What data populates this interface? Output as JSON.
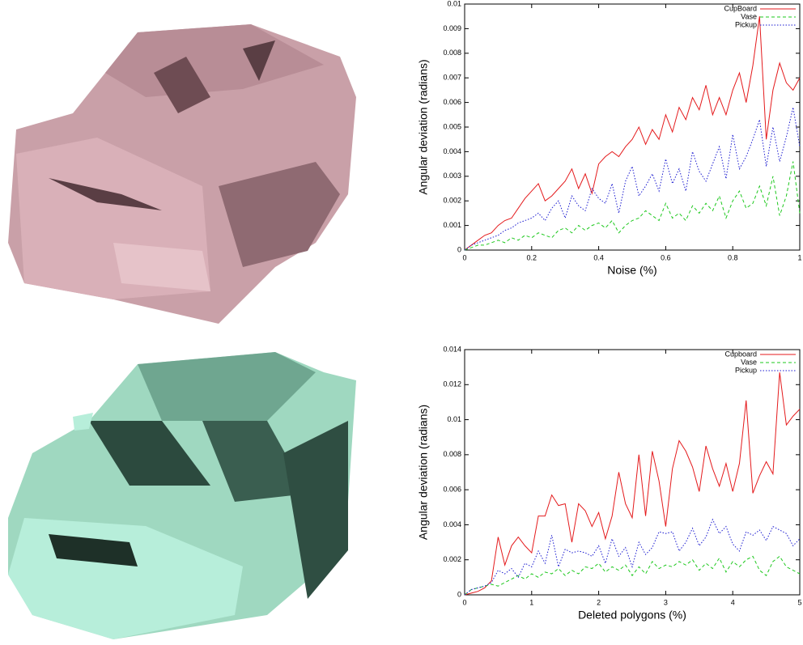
{
  "chart_data": [
    {
      "type": "line",
      "xlabel": "Noise (%)",
      "ylabel": "Angular deviation (radians)",
      "xlim": [
        0,
        1
      ],
      "xticks": [
        0,
        0.2,
        0.4,
        0.6,
        0.8,
        1
      ],
      "ylim": [
        0,
        0.01
      ],
      "yticks": [
        0,
        0.001,
        0.002,
        0.003,
        0.004,
        0.005,
        0.006,
        0.007,
        0.008,
        0.009,
        0.01
      ],
      "legend": "upper right",
      "x": [
        0,
        0.02,
        0.04,
        0.06,
        0.08,
        0.1,
        0.12,
        0.14,
        0.16,
        0.18,
        0.2,
        0.22,
        0.24,
        0.26,
        0.28,
        0.3,
        0.32,
        0.34,
        0.36,
        0.38,
        0.4,
        0.42,
        0.44,
        0.46,
        0.48,
        0.5,
        0.52,
        0.54,
        0.56,
        0.58,
        0.6,
        0.62,
        0.64,
        0.66,
        0.68,
        0.7,
        0.72,
        0.74,
        0.76,
        0.78,
        0.8,
        0.82,
        0.84,
        0.86,
        0.88,
        0.9,
        0.92,
        0.94,
        0.96,
        0.98,
        1
      ],
      "series": [
        {
          "name": "CupBoard",
          "color": "#e41a1c",
          "dash": "solid",
          "values": [
            0,
            0.0002,
            0.0004,
            0.0006,
            0.0007,
            0.001,
            0.0012,
            0.0013,
            0.0017,
            0.0021,
            0.0024,
            0.0027,
            0.002,
            0.0022,
            0.0025,
            0.0028,
            0.0033,
            0.0025,
            0.0031,
            0.0023,
            0.0035,
            0.0038,
            0.004,
            0.0038,
            0.0042,
            0.0045,
            0.005,
            0.0043,
            0.0049,
            0.0045,
            0.0055,
            0.0048,
            0.0058,
            0.0053,
            0.0062,
            0.0057,
            0.0067,
            0.0055,
            0.0062,
            0.0055,
            0.0065,
            0.0072,
            0.006,
            0.0075,
            0.0095,
            0.0045,
            0.0065,
            0.0076,
            0.0068,
            0.0065,
            0.007
          ]
        },
        {
          "name": "Vase",
          "color": "#1ec81e",
          "dash": "dashed",
          "values": [
            0,
            0.0001,
            0.0002,
            0.0002,
            0.0003,
            0.0004,
            0.0003,
            0.0005,
            0.0004,
            0.0006,
            0.0005,
            0.0007,
            0.0006,
            0.0005,
            0.0008,
            0.0009,
            0.0007,
            0.001,
            0.0008,
            0.001,
            0.0011,
            0.0009,
            0.0012,
            0.0007,
            0.001,
            0.0012,
            0.0013,
            0.0016,
            0.0014,
            0.0012,
            0.0019,
            0.0013,
            0.0015,
            0.0012,
            0.0018,
            0.0015,
            0.0019,
            0.0016,
            0.0022,
            0.0013,
            0.002,
            0.0024,
            0.0017,
            0.0019,
            0.0026,
            0.0018,
            0.003,
            0.0014,
            0.0022,
            0.0036,
            0.0015
          ]
        },
        {
          "name": "Pickup",
          "color": "#1a1ad0",
          "dash": "dotted",
          "values": [
            0,
            0.0002,
            0.0003,
            0.0004,
            0.0005,
            0.0006,
            0.0008,
            0.0009,
            0.0011,
            0.0012,
            0.0013,
            0.0015,
            0.0012,
            0.0017,
            0.002,
            0.0013,
            0.0022,
            0.0018,
            0.0016,
            0.0025,
            0.0021,
            0.0019,
            0.0027,
            0.0015,
            0.0028,
            0.0034,
            0.0022,
            0.0026,
            0.0031,
            0.0024,
            0.0037,
            0.0027,
            0.0033,
            0.0024,
            0.004,
            0.0032,
            0.0028,
            0.0035,
            0.0042,
            0.0029,
            0.0047,
            0.0033,
            0.0038,
            0.0045,
            0.0053,
            0.0034,
            0.005,
            0.0036,
            0.0046,
            0.0058,
            0.0042
          ]
        }
      ]
    },
    {
      "type": "line",
      "xlabel": "Deleted polygons (%)",
      "ylabel": "Angular deviation (radians)",
      "xlim": [
        0,
        5
      ],
      "xticks": [
        0,
        1,
        2,
        3,
        4,
        5
      ],
      "ylim": [
        0,
        0.014
      ],
      "yticks": [
        0,
        0.002,
        0.004,
        0.006,
        0.008,
        0.01,
        0.012,
        0.014
      ],
      "legend": "upper right",
      "x": [
        0,
        0.1,
        0.2,
        0.3,
        0.4,
        0.5,
        0.6,
        0.7,
        0.8,
        0.9,
        1,
        1.1,
        1.2,
        1.3,
        1.4,
        1.5,
        1.6,
        1.7,
        1.8,
        1.9,
        2,
        2.1,
        2.2,
        2.3,
        2.4,
        2.5,
        2.6,
        2.7,
        2.8,
        2.9,
        3,
        3.1,
        3.2,
        3.3,
        3.4,
        3.5,
        3.6,
        3.7,
        3.8,
        3.9,
        4,
        4.1,
        4.2,
        4.3,
        4.4,
        4.5,
        4.6,
        4.7,
        4.8,
        4.9,
        5
      ],
      "series": [
        {
          "name": "Cupboard",
          "color": "#e41a1c",
          "dash": "solid",
          "values": [
            0,
            0.0001,
            0.0002,
            0.0004,
            0.0008,
            0.0033,
            0.0017,
            0.0028,
            0.0033,
            0.0028,
            0.0024,
            0.0045,
            0.0045,
            0.0057,
            0.0051,
            0.0052,
            0.003,
            0.0052,
            0.0048,
            0.0039,
            0.0047,
            0.0032,
            0.0045,
            0.007,
            0.0052,
            0.0044,
            0.008,
            0.0045,
            0.0082,
            0.0065,
            0.0039,
            0.0072,
            0.0088,
            0.0082,
            0.0073,
            0.0059,
            0.0085,
            0.0072,
            0.0062,
            0.0075,
            0.0059,
            0.0075,
            0.0111,
            0.0058,
            0.0068,
            0.0076,
            0.0069,
            0.0127,
            0.0097,
            0.0102,
            0.0106
          ]
        },
        {
          "name": "Vase",
          "color": "#1ec81e",
          "dash": "dashed",
          "values": [
            0,
            0.0003,
            0.0004,
            0.0005,
            0.0006,
            0.0005,
            0.0007,
            0.0009,
            0.0011,
            0.0009,
            0.0012,
            0.001,
            0.0013,
            0.0012,
            0.0015,
            0.0011,
            0.0014,
            0.0012,
            0.0016,
            0.0015,
            0.0018,
            0.0013,
            0.0016,
            0.0014,
            0.0017,
            0.0011,
            0.0016,
            0.0012,
            0.0019,
            0.0015,
            0.0017,
            0.0016,
            0.0019,
            0.0017,
            0.002,
            0.0014,
            0.0018,
            0.0015,
            0.0021,
            0.0013,
            0.0019,
            0.0016,
            0.002,
            0.0022,
            0.0014,
            0.0011,
            0.0019,
            0.0022,
            0.0016,
            0.0014,
            0.0012
          ]
        },
        {
          "name": "Pickup",
          "color": "#1a1ad0",
          "dash": "dotted",
          "values": [
            0,
            0.0003,
            0.0004,
            0.0005,
            0.0007,
            0.0014,
            0.0012,
            0.0015,
            0.001,
            0.0018,
            0.0016,
            0.0025,
            0.0018,
            0.0034,
            0.0016,
            0.0026,
            0.0024,
            0.0025,
            0.0024,
            0.0022,
            0.0028,
            0.0018,
            0.0032,
            0.0022,
            0.0027,
            0.0016,
            0.003,
            0.0023,
            0.0027,
            0.0036,
            0.0035,
            0.0036,
            0.0025,
            0.003,
            0.0038,
            0.0028,
            0.0033,
            0.0043,
            0.0035,
            0.0039,
            0.0029,
            0.0025,
            0.0036,
            0.0034,
            0.0037,
            0.0031,
            0.0039,
            0.0037,
            0.0035,
            0.0028,
            0.0032
          ]
        }
      ]
    }
  ]
}
